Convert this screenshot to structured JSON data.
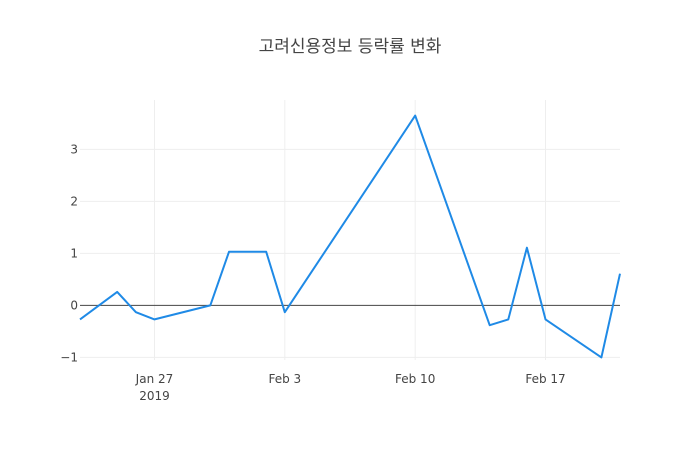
{
  "chart_data": {
    "type": "line",
    "title": "고려신용정보 등락률 변화",
    "xlabel": "",
    "ylabel": "",
    "x_range": [
      "2019-01-20",
      "2019-02-19"
    ],
    "ylim": [
      -1.05,
      3.95
    ],
    "grid": true,
    "x_ticks": [
      {
        "date": "2019-01-27",
        "label": "Jan 27",
        "sublabel": "2019"
      },
      {
        "date": "2019-02-03",
        "label": "Feb 3",
        "sublabel": ""
      },
      {
        "date": "2019-02-10",
        "label": "Feb 10",
        "sublabel": ""
      },
      {
        "date": "2019-02-17",
        "label": "Feb 17",
        "sublabel": ""
      }
    ],
    "y_ticks": [
      {
        "value": -1,
        "label": "−1"
      },
      {
        "value": 0,
        "label": "0"
      },
      {
        "value": 1,
        "label": "1"
      },
      {
        "value": 2,
        "label": "2"
      },
      {
        "value": 3,
        "label": "3"
      }
    ],
    "series": [
      {
        "color": "#1f8ae6",
        "points": [
          {
            "x": "2019-01-23",
            "y": -0.27
          },
          {
            "x": "2019-01-25",
            "y": 0.26
          },
          {
            "x": "2019-01-26",
            "y": -0.13
          },
          {
            "x": "2019-01-27",
            "y": -0.27
          },
          {
            "x": "2019-01-30",
            "y": 0.0
          },
          {
            "x": "2019-01-31",
            "y": 1.03
          },
          {
            "x": "2019-02-02",
            "y": 1.03
          },
          {
            "x": "2019-02-03",
            "y": -0.13
          },
          {
            "x": "2019-02-10",
            "y": 3.65
          },
          {
            "x": "2019-02-14",
            "y": -0.38
          },
          {
            "x": "2019-02-15",
            "y": -0.27
          },
          {
            "x": "2019-02-16",
            "y": 1.11
          },
          {
            "x": "2019-02-17",
            "y": -0.27
          },
          {
            "x": "2019-02-20",
            "y": -1.0
          },
          {
            "x": "2019-02-21",
            "y": 0.61
          }
        ]
      }
    ]
  }
}
